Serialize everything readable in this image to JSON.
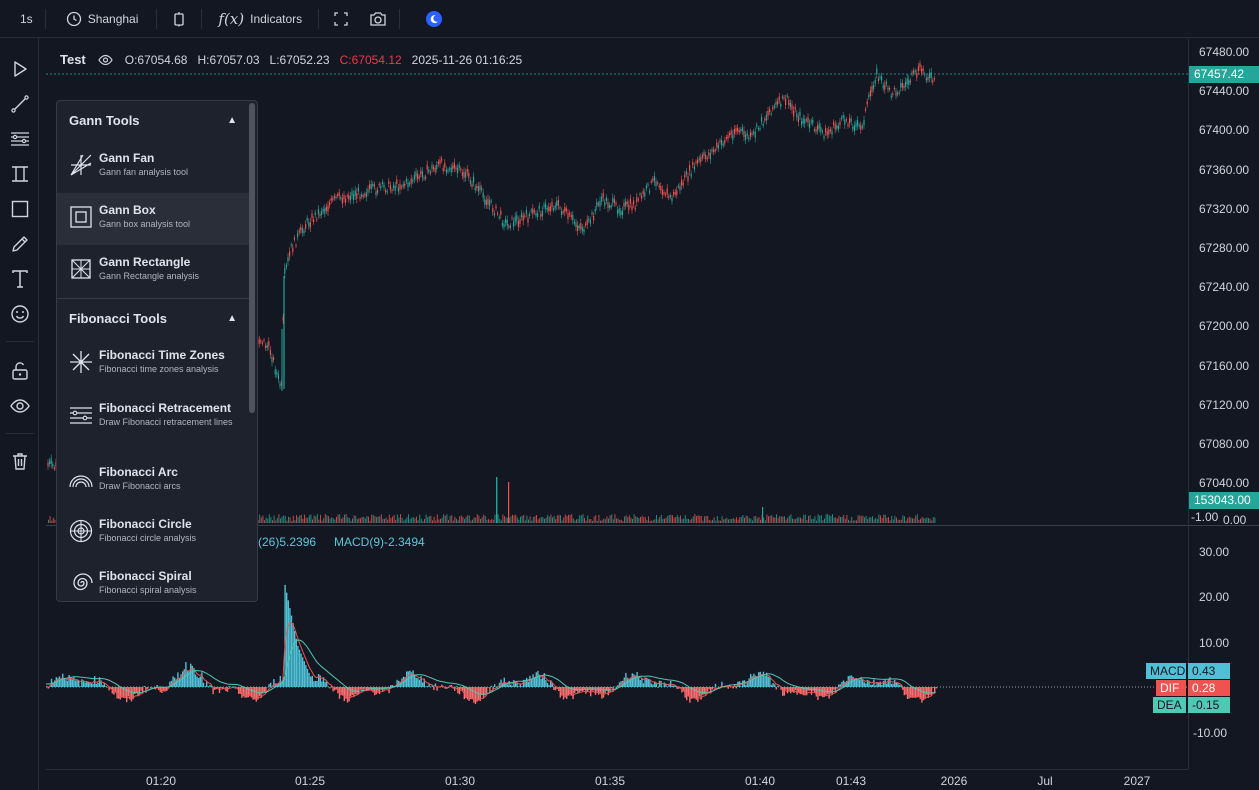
{
  "toolbar": {
    "interval": "1s",
    "timezone": "Shanghai",
    "indicators_label": "Indicators",
    "fx_label": "f(x)"
  },
  "legend": {
    "symbol": "Test",
    "open": "O:67054.68",
    "high": "H:67057.03",
    "low": "L:67052.23",
    "close": "C:67054.12",
    "datetime": "2025-11-26 01:16:25"
  },
  "indicator_legend": {
    "vol_text": "(26)5.2396",
    "macd_text": "MACD(9)-2.3494"
  },
  "price_axis": {
    "labels": [
      "67480.00",
      "67440.00",
      "67400.00",
      "67360.00",
      "67320.00",
      "67280.00",
      "67240.00",
      "67200.00",
      "67160.00",
      "67120.00",
      "67080.00",
      "67040.00"
    ],
    "last_price": "67457.42",
    "volume_tag": "153043.00",
    "vol_neg": "-1.00",
    "vol_zero": "0.00",
    "macd_labels": [
      "30.00",
      "20.00",
      "10.00",
      "-10.00"
    ]
  },
  "time_axis": {
    "labels": [
      "01:20",
      "01:25",
      "01:30",
      "01:35",
      "01:40",
      "01:43",
      "2026",
      "Jul",
      "2027"
    ]
  },
  "macd": {
    "macd_name": "MACD",
    "macd_value": "0.43",
    "dif_name": "DIF",
    "dif_value": "0.28",
    "dea_name": "DEA",
    "dea_value": "-0.15"
  },
  "colors": {
    "up": "#26a69a",
    "down": "#ef5350",
    "macd_hist_up": "#4fc0d6",
    "macd_hist_down": "#f87171",
    "accent": "#2962ff",
    "last_price_tag": "#26a69a"
  },
  "panel": {
    "gann_title": "Gann Tools",
    "fib_title": "Fibonacci Tools",
    "gann_tools": [
      {
        "name": "Gann Fan",
        "desc": "Gann fan analysis tool",
        "icon": "gann-fan-icon"
      },
      {
        "name": "Gann Box",
        "desc": "Gann box analysis tool",
        "icon": "gann-box-icon"
      },
      {
        "name": "Gann Rectangle",
        "desc": "Gann Rectangle analysis",
        "icon": "gann-rectangle-icon"
      }
    ],
    "fib_tools": [
      {
        "name": "Fibonacci Time Zones",
        "desc": "Fibonacci time zones analysis",
        "icon": "fib-time-zones-icon"
      },
      {
        "name": "Fibonacci Retracement",
        "desc": "Draw Fibonacci retracement lines",
        "icon": "fib-retracement-icon"
      },
      {
        "name": "Fibonacci Arc",
        "desc": "Draw Fibonacci arcs",
        "icon": "fib-arc-icon"
      },
      {
        "name": "Fibonacci Circle",
        "desc": "Fibonacci circle analysis",
        "icon": "fib-circle-icon"
      },
      {
        "name": "Fibonacci Spiral",
        "desc": "Fibonacci spiral analysis",
        "icon": "fib-spiral-icon"
      }
    ]
  }
}
